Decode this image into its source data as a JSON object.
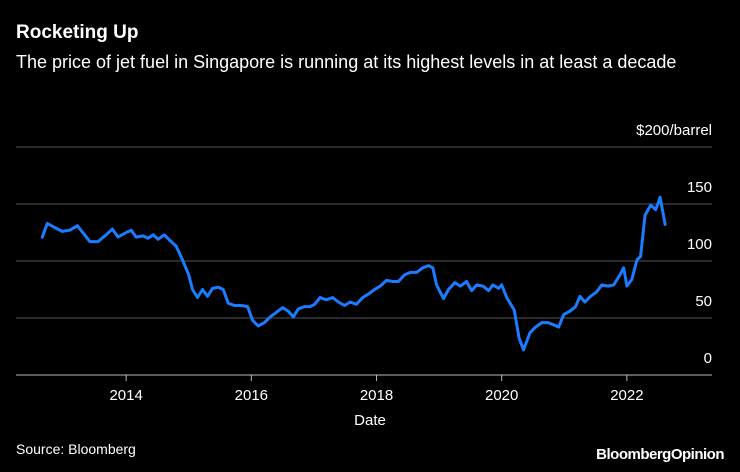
{
  "chart_data": {
    "type": "line",
    "title": "Rocketing Up",
    "subtitle": "The price of jet fuel in Singapore is running at its highest levels in at least a decade",
    "x_label": "Date",
    "source": "Source: Bloomberg",
    "brand": "BloombergOpinion",
    "xlim": [
      2012.24,
      2023.36
    ],
    "xticks": [
      2014,
      2016,
      2018,
      2020,
      2022
    ],
    "ylim": [
      0,
      200
    ],
    "yticks": [
      0,
      50,
      100,
      150,
      {
        "value": 200,
        "label": "$200/barrel"
      }
    ],
    "grid": true,
    "series": [
      {
        "name": "Jet fuel",
        "color": "#1a7cff",
        "x": [
          2012.66,
          2012.74,
          2012.87,
          2012.98,
          2013.1,
          2013.22,
          2013.32,
          2013.42,
          2013.55,
          2013.68,
          2013.78,
          2013.87,
          2014.0,
          2014.08,
          2014.16,
          2014.27,
          2014.35,
          2014.43,
          2014.51,
          2014.61,
          2014.7,
          2014.8,
          2014.9,
          2015.0,
          2015.06,
          2015.14,
          2015.22,
          2015.3,
          2015.38,
          2015.47,
          2015.55,
          2015.63,
          2015.73,
          2015.84,
          2015.94,
          2016.02,
          2016.11,
          2016.21,
          2016.3,
          2016.4,
          2016.5,
          2016.59,
          2016.67,
          2016.75,
          2016.85,
          2016.94,
          2017.01,
          2017.1,
          2017.2,
          2017.3,
          2017.39,
          2017.49,
          2017.58,
          2017.68,
          2017.78,
          2017.87,
          2017.97,
          2018.06,
          2018.16,
          2018.26,
          2018.35,
          2018.45,
          2018.54,
          2018.64,
          2018.74,
          2018.83,
          2018.9,
          2018.96,
          2019.07,
          2019.15,
          2019.25,
          2019.34,
          2019.44,
          2019.52,
          2019.6,
          2019.7,
          2019.79,
          2019.86,
          2019.95,
          2020.0,
          2020.08,
          2020.2,
          2020.28,
          2020.35,
          2020.45,
          2020.54,
          2020.64,
          2020.74,
          2020.83,
          2020.91,
          2020.99,
          2021.09,
          2021.18,
          2021.25,
          2021.33,
          2021.42,
          2021.52,
          2021.6,
          2021.7,
          2021.79,
          2021.89,
          2021.95,
          2022.0,
          2022.08,
          2022.16,
          2022.22,
          2022.29,
          2022.38,
          2022.46,
          2022.53,
          2022.61
        ],
        "values": [
          121,
          133,
          129,
          126,
          127,
          131,
          124,
          117,
          117,
          123,
          128,
          121,
          125,
          127,
          121,
          122,
          120,
          123,
          119,
          123,
          118,
          113,
          101,
          88,
          75,
          68,
          75,
          69,
          76,
          77,
          75,
          63,
          61,
          61,
          60,
          48,
          43,
          46,
          51,
          55,
          59,
          56,
          51,
          58,
          60,
          60,
          62,
          68,
          66,
          68,
          64,
          61,
          64,
          62,
          68,
          71,
          75,
          78,
          83,
          82,
          82,
          88,
          90,
          90,
          94,
          96,
          94,
          79,
          67,
          75,
          81,
          78,
          82,
          74,
          79,
          78,
          74,
          79,
          76,
          79,
          68,
          57,
          32,
          22,
          37,
          42,
          46,
          46,
          44,
          42,
          53,
          56,
          60,
          69,
          64,
          69,
          73,
          79,
          78,
          79,
          88,
          94,
          78,
          84,
          101,
          104,
          140,
          149,
          145,
          156,
          132
        ]
      }
    ]
  }
}
